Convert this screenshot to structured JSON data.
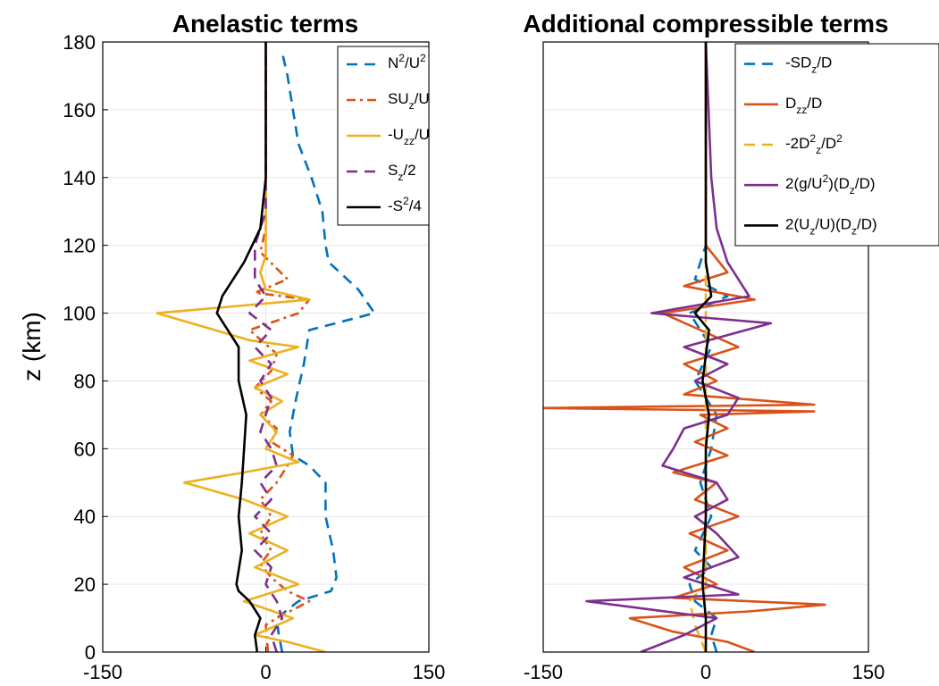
{
  "chart_data": [
    {
      "type": "line",
      "title": "Anelastic terms",
      "ylabel": "z (km)",
      "xlabel": "",
      "xlim": [
        -150,
        150
      ],
      "ylim": [
        0,
        180
      ],
      "xticks": [
        "-150",
        "0",
        "150"
      ],
      "yticks": [
        "0",
        "20",
        "40",
        "60",
        "80",
        "100",
        "120",
        "140",
        "160",
        "180"
      ],
      "grid": true,
      "legend_position": "top-right",
      "series": [
        {
          "name": "N²/U²",
          "legend_base": "N",
          "legend_sup1": "2",
          "legend_mid": "/U",
          "legend_sup2": "2",
          "color": "#0072BD",
          "dash": "dashed",
          "points": [
            [
              15,
              0
            ],
            [
              12,
              5
            ],
            [
              10,
              10
            ],
            [
              30,
              15
            ],
            [
              60,
              18
            ],
            [
              65,
              22
            ],
            [
              62,
              30
            ],
            [
              55,
              40
            ],
            [
              55,
              50
            ],
            [
              40,
              55
            ],
            [
              25,
              58
            ],
            [
              22,
              65
            ],
            [
              28,
              75
            ],
            [
              35,
              85
            ],
            [
              40,
              95
            ],
            [
              100,
              100
            ],
            [
              85,
              107
            ],
            [
              58,
              115
            ],
            [
              55,
              120
            ],
            [
              52,
              130
            ],
            [
              42,
              140
            ],
            [
              30,
              150
            ],
            [
              25,
              160
            ],
            [
              20,
              170
            ],
            [
              15,
              177
            ]
          ]
        },
        {
          "name": "SU_z/U",
          "legend_base": "SU",
          "legend_sub1": "z",
          "legend_mid": "/U",
          "color": "#D95319",
          "dash": "dashdot",
          "points": [
            [
              2,
              0
            ],
            [
              0,
              8
            ],
            [
              10,
              10
            ],
            [
              40,
              15
            ],
            [
              20,
              18
            ],
            [
              5,
              22
            ],
            [
              -5,
              26
            ],
            [
              5,
              30
            ],
            [
              -5,
              35
            ],
            [
              5,
              40
            ],
            [
              -5,
              45
            ],
            [
              10,
              50
            ],
            [
              20,
              55
            ],
            [
              25,
              58
            ],
            [
              5,
              62
            ],
            [
              10,
              66
            ],
            [
              -5,
              70
            ],
            [
              5,
              74
            ],
            [
              -10,
              78
            ],
            [
              5,
              83
            ],
            [
              10,
              88
            ],
            [
              -15,
              95
            ],
            [
              30,
              100
            ],
            [
              40,
              104
            ],
            [
              -10,
              106
            ],
            [
              20,
              110
            ],
            [
              -5,
              118
            ],
            [
              0,
              125
            ],
            [
              0,
              140
            ],
            [
              0,
              180
            ]
          ]
        },
        {
          "name": "-U_zz/U",
          "legend_base": "-U",
          "legend_sub1": "zz",
          "legend_mid": "/U",
          "color": "#EDB120",
          "dash": "solid",
          "points": [
            [
              55,
              0
            ],
            [
              20,
              3
            ],
            [
              -10,
              5
            ],
            [
              25,
              10
            ],
            [
              -20,
              15
            ],
            [
              30,
              20
            ],
            [
              -10,
              25
            ],
            [
              20,
              30
            ],
            [
              -15,
              35
            ],
            [
              20,
              40
            ],
            [
              -20,
              45
            ],
            [
              -75,
              50
            ],
            [
              -20,
              53
            ],
            [
              30,
              56
            ],
            [
              0,
              60
            ],
            [
              10,
              65
            ],
            [
              -5,
              70
            ],
            [
              15,
              74
            ],
            [
              -10,
              78
            ],
            [
              20,
              82
            ],
            [
              -15,
              86
            ],
            [
              30,
              90
            ],
            [
              -15,
              92
            ],
            [
              -100,
              100
            ],
            [
              40,
              104
            ],
            [
              0,
              107
            ],
            [
              -5,
              112
            ],
            [
              0,
              117
            ],
            [
              0,
              140
            ],
            [
              0,
              180
            ]
          ]
        },
        {
          "name": "S_z/2",
          "legend_base": "S",
          "legend_sub1": "z",
          "legend_mid": "/2",
          "color": "#7E2F8E",
          "dash": "dashed",
          "points": [
            [
              10,
              0
            ],
            [
              5,
              5
            ],
            [
              15,
              10
            ],
            [
              10,
              15
            ],
            [
              0,
              20
            ],
            [
              5,
              25
            ],
            [
              -10,
              30
            ],
            [
              5,
              35
            ],
            [
              -10,
              40
            ],
            [
              5,
              45
            ],
            [
              -5,
              50
            ],
            [
              10,
              55
            ],
            [
              5,
              60
            ],
            [
              -5,
              65
            ],
            [
              0,
              70
            ],
            [
              5,
              75
            ],
            [
              -5,
              80
            ],
            [
              5,
              85
            ],
            [
              -10,
              90
            ],
            [
              5,
              95
            ],
            [
              -15,
              100
            ],
            [
              0,
              105
            ],
            [
              -10,
              110
            ],
            [
              -10,
              120
            ],
            [
              0,
              130
            ],
            [
              0,
              180
            ]
          ]
        },
        {
          "name": "-S²/4",
          "legend_base": "-S",
          "legend_sup1": "2",
          "legend_mid": "/4",
          "color": "#000000",
          "dash": "solid",
          "points": [
            [
              -8,
              0
            ],
            [
              -10,
              5
            ],
            [
              -5,
              10
            ],
            [
              -15,
              15
            ],
            [
              -25,
              18
            ],
            [
              -27,
              20
            ],
            [
              -22,
              30
            ],
            [
              -25,
              40
            ],
            [
              -22,
              50
            ],
            [
              -20,
              60
            ],
            [
              -18,
              70
            ],
            [
              -25,
              80
            ],
            [
              -25,
              90
            ],
            [
              -45,
              100
            ],
            [
              -40,
              105
            ],
            [
              -20,
              115
            ],
            [
              -5,
              125
            ],
            [
              0,
              140
            ],
            [
              0,
              180
            ]
          ]
        }
      ]
    },
    {
      "type": "line",
      "title": "Additional compressible terms",
      "ylabel": "",
      "xlabel": "",
      "xlim": [
        -150,
        150
      ],
      "ylim": [
        0,
        180
      ],
      "xticks": [
        "-150",
        "0",
        "150"
      ],
      "yticks": [],
      "grid": true,
      "legend_position": "top-right",
      "series": [
        {
          "name": "-SD_z/D",
          "legend_base": "-SD",
          "legend_sub1": "z",
          "legend_mid": "/D",
          "color": "#0072BD",
          "dash": "dashed",
          "points": [
            [
              10,
              0
            ],
            [
              5,
              5
            ],
            [
              10,
              10
            ],
            [
              -10,
              15
            ],
            [
              -15,
              20
            ],
            [
              5,
              25
            ],
            [
              -10,
              30
            ],
            [
              5,
              40
            ],
            [
              -5,
              50
            ],
            [
              5,
              60
            ],
            [
              10,
              70
            ],
            [
              -10,
              80
            ],
            [
              5,
              90
            ],
            [
              -15,
              100
            ],
            [
              20,
              105
            ],
            [
              -10,
              110
            ],
            [
              0,
              120
            ],
            [
              0,
              180
            ]
          ]
        },
        {
          "name": "D_zz/D",
          "legend_base": "D",
          "legend_sub1": "zz",
          "legend_mid": "/D",
          "color": "#D95319",
          "dash": "solid",
          "points": [
            [
              45,
              0
            ],
            [
              20,
              3
            ],
            [
              -30,
              6
            ],
            [
              -70,
              10
            ],
            [
              40,
              12
            ],
            [
              110,
              14
            ],
            [
              -30,
              16
            ],
            [
              10,
              20
            ],
            [
              -20,
              25
            ],
            [
              20,
              30
            ],
            [
              -15,
              35
            ],
            [
              30,
              40
            ],
            [
              -10,
              45
            ],
            [
              10,
              50
            ],
            [
              -30,
              53
            ],
            [
              20,
              58
            ],
            [
              -10,
              62
            ],
            [
              20,
              66
            ],
            [
              -5,
              70
            ],
            [
              100,
              71
            ],
            [
              -150,
              72
            ],
            [
              100,
              73
            ],
            [
              -20,
              76
            ],
            [
              10,
              80
            ],
            [
              -20,
              85
            ],
            [
              30,
              90
            ],
            [
              -40,
              100
            ],
            [
              45,
              104
            ],
            [
              -20,
              108
            ],
            [
              20,
              112
            ],
            [
              0,
              120
            ],
            [
              0,
              180
            ]
          ]
        },
        {
          "name": "-2D²_z/D²",
          "legend_base": "-2D",
          "legend_sup1": "2",
          "legend_sub1": "z",
          "legend_mid": "/D",
          "legend_sup2": "2",
          "color": "#EDB120",
          "dash": "dashed",
          "points": [
            [
              0,
              0
            ],
            [
              -10,
              8
            ],
            [
              -15,
              15
            ],
            [
              0,
              20
            ],
            [
              0,
              40
            ],
            [
              0,
              60
            ],
            [
              0,
              80
            ],
            [
              0,
              100
            ],
            [
              0,
              180
            ]
          ]
        },
        {
          "name": "2(g/U²)(D_z/D)",
          "legend_base": "2(g/U",
          "legend_sup1": "2",
          "legend_mid": ")(D",
          "legend_sub2": "z",
          "legend_end": "/D)",
          "color": "#7E2F8E",
          "dash": "solid",
          "points": [
            [
              -60,
              0
            ],
            [
              -20,
              5
            ],
            [
              10,
              10
            ],
            [
              -110,
              15
            ],
            [
              30,
              17
            ],
            [
              -20,
              22
            ],
            [
              30,
              28
            ],
            [
              10,
              35
            ],
            [
              -10,
              40
            ],
            [
              20,
              45
            ],
            [
              10,
              50
            ],
            [
              -40,
              55
            ],
            [
              -30,
              60
            ],
            [
              -20,
              66
            ],
            [
              20,
              70
            ],
            [
              30,
              75
            ],
            [
              -10,
              80
            ],
            [
              20,
              85
            ],
            [
              -20,
              90
            ],
            [
              60,
              97
            ],
            [
              -50,
              100
            ],
            [
              40,
              105
            ],
            [
              30,
              110
            ],
            [
              20,
              115
            ],
            [
              10,
              125
            ],
            [
              5,
              140
            ],
            [
              0,
              180
            ]
          ]
        },
        {
          "name": "2(U_z/U)(D_z/D)",
          "legend_base": "2(U",
          "legend_sub1": "z",
          "legend_mid": "/U)(D",
          "legend_sub2": "z",
          "legend_end": "/D)",
          "color": "#000000",
          "dash": "solid",
          "points": [
            [
              0,
              0
            ],
            [
              0,
              10
            ],
            [
              -3,
              20
            ],
            [
              0,
              40
            ],
            [
              0,
              60
            ],
            [
              3,
              70
            ],
            [
              -3,
              80
            ],
            [
              3,
              95
            ],
            [
              -10,
              100
            ],
            [
              5,
              105
            ],
            [
              0,
              115
            ],
            [
              0,
              180
            ]
          ]
        }
      ]
    }
  ]
}
